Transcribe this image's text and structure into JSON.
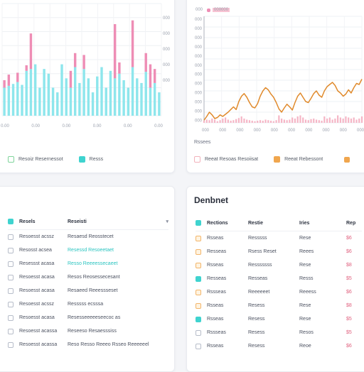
{
  "chart_data": [
    {
      "type": "bar",
      "x": [
        1,
        2,
        3,
        4,
        5,
        6,
        7,
        8,
        9,
        10,
        11,
        12,
        13,
        14,
        15,
        16,
        17,
        18,
        19,
        20,
        21,
        22,
        23,
        24,
        25,
        26,
        27,
        28,
        29,
        30,
        31,
        32,
        33,
        34,
        35,
        36
      ],
      "series": [
        {
          "values": [
            30,
            32,
            34,
            36,
            33,
            48,
            50,
            55,
            30,
            50,
            45,
            30,
            25,
            55,
            40,
            30,
            52,
            35,
            50,
            40,
            25,
            42,
            52,
            30,
            48,
            40,
            45,
            38,
            30,
            52,
            40,
            35,
            47,
            30,
            35,
            25
          ]
        },
        {
          "values": [
            8,
            12,
            0,
            10,
            0,
            6,
            38,
            0,
            0,
            0,
            0,
            0,
            0,
            0,
            0,
            18,
            15,
            0,
            15,
            0,
            0,
            0,
            0,
            0,
            0,
            58,
            12,
            0,
            0,
            50,
            0,
            0,
            20,
            25,
            15,
            0
          ]
        }
      ],
      "colors": [
        "#8ee6ec",
        "#ee8db5"
      ],
      "ylim": [
        0,
        120
      ],
      "x_tick_labels": [
        "0.00",
        "0.00",
        "0.00",
        "0.00",
        "0.00",
        "0.00"
      ],
      "y_tick_labels": [
        "000",
        "000",
        "000",
        "000",
        "000"
      ],
      "grid": true
    },
    {
      "type": "line",
      "x": [
        1,
        2,
        3,
        4,
        5,
        6,
        7,
        8,
        9,
        10,
        11,
        12,
        13,
        14,
        15,
        16,
        17,
        18,
        19,
        20,
        21,
        22,
        23,
        24,
        25,
        26,
        27,
        28,
        29,
        30,
        31,
        32,
        33,
        34,
        35,
        36,
        37,
        38,
        39,
        40,
        41,
        42,
        43,
        44,
        45,
        46,
        47,
        48,
        49,
        50,
        51,
        52,
        53,
        54,
        55,
        56,
        57,
        58,
        59,
        60
      ],
      "series": [
        {
          "values": [
            5,
            12,
            20,
            15,
            8,
            10,
            15,
            12,
            16,
            20,
            25,
            30,
            25,
            40,
            50,
            55,
            48,
            38,
            30,
            28,
            36,
            50,
            60,
            66,
            62,
            54,
            48,
            38,
            26,
            20,
            28,
            35,
            30,
            24,
            38,
            50,
            56,
            48,
            40,
            38,
            46,
            55,
            60,
            52,
            48,
            60,
            68,
            72,
            76,
            70,
            60,
            56,
            50,
            54,
            62,
            56,
            66,
            74,
            72,
            82
          ],
          "color": "#e08a2c"
        },
        {
          "values": [
            4,
            6,
            5,
            8,
            6,
            3,
            5,
            8,
            10,
            6,
            4,
            5,
            7,
            9,
            12,
            8,
            6,
            5,
            4,
            3,
            4,
            5,
            4,
            6,
            5,
            4,
            3,
            5,
            14,
            8,
            6,
            5,
            6,
            10,
            8,
            12,
            14,
            10,
            6,
            5,
            7,
            8,
            6,
            5,
            4,
            12,
            8,
            10,
            6,
            8,
            14,
            10,
            8,
            12,
            10,
            8,
            10,
            6,
            8,
            12
          ],
          "color": "#f5b6c6"
        }
      ],
      "ylim": [
        0,
        200
      ],
      "x_tick_labels": [
        "000",
        "000",
        "000",
        "000",
        "000",
        "000",
        "000",
        "000",
        "000",
        "000"
      ],
      "y_tick_labels": [
        "000",
        "000",
        "000",
        "000",
        "000",
        "000",
        "000",
        "000",
        "000",
        "000",
        "000",
        "000"
      ],
      "grid": true
    }
  ],
  "card_tl": {
    "legend": [
      {
        "label": "Resoiz Resernessot",
        "color": "#bfe9c9"
      },
      {
        "label": "Resss",
        "color": "#3fd3cf"
      }
    ]
  },
  "card_tr": {
    "top_legend": [
      "000",
      "000000"
    ],
    "subtitle": "Rssees",
    "legend": [
      {
        "label": "Reeat Resoas Resoiisat",
        "color": "#f7cbd1"
      },
      {
        "label": "Reeat Rebessont",
        "color": "#f0a64e"
      }
    ]
  },
  "card_bl": {
    "columns": [
      "Resels",
      "Reseisti"
    ],
    "rows": [
      [
        "Resoesst acssz",
        "Resaesd Reosstecet"
      ],
      [
        "Resosst acsea",
        "Resessd Resoeetaet"
      ],
      [
        "Resessst acasa",
        "Resso Reeeessecaeet"
      ],
      [
        "Resoesst acasa",
        "Resos Reosessecesant"
      ],
      [
        "Resoesst acasa",
        "Resaeed Reeessseset"
      ],
      [
        "Resoesst acssz",
        "Resssss ecsssa"
      ],
      [
        "Resoesst acasa",
        "Resesseeeeeseecoc as"
      ],
      [
        "Resoesst acassa",
        "Reseeso Resaesssiss"
      ],
      [
        "Resoesst acassa",
        "Reso Resso Reeeo Rsseo Reeeeeel"
      ]
    ],
    "highlighted_rows": [
      1,
      2
    ]
  },
  "card_br": {
    "title": "Denbnet",
    "columns": [
      "Rections",
      "Restie",
      "Iries",
      "Rep"
    ],
    "rows": [
      [
        "Rsseas",
        "Resssss",
        "Rese",
        "$6",
        "orange"
      ],
      [
        "Resseas",
        "Rsess Reset",
        "Reees",
        "$6",
        "orange"
      ],
      [
        "Rsseas",
        "Resssssss",
        "Rese",
        "$8",
        "orange"
      ],
      [
        "Resseas",
        "Resseas",
        "Resss",
        "$5",
        "teal"
      ],
      [
        "Rssseas",
        "Reeeeeet",
        "Reeess",
        "$6",
        "orange"
      ],
      [
        "Rsseas",
        "Resess",
        "Rese",
        "$8",
        "orange"
      ],
      [
        "Rsseas",
        "Resess",
        "Rese",
        "$5",
        "teal"
      ],
      [
        "Rssseas",
        "Resess",
        "Resos",
        "$5",
        "plain"
      ],
      [
        "Rsseas",
        "Resess",
        "Reoe",
        "$6",
        "plain"
      ]
    ]
  }
}
